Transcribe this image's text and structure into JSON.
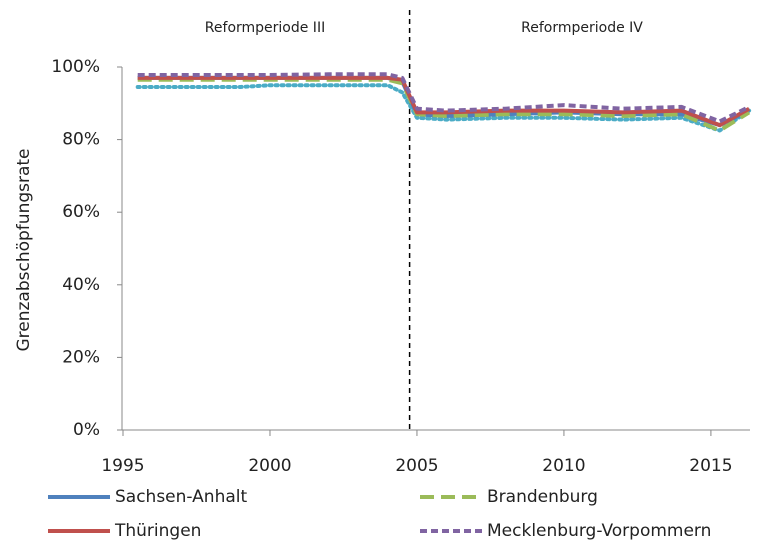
{
  "chart_data": {
    "type": "line",
    "y_label": "Grenzabschöpfungsrate",
    "annotations": [
      "Reformperiode III",
      "Reformperiode IV"
    ],
    "period_boundary": 2004.75,
    "x": [
      1995.5,
      1997,
      1999,
      2000,
      2002,
      2004,
      2004.5,
      2005,
      2006,
      2008,
      2010,
      2012,
      2014,
      2015.3,
      2016.3
    ],
    "series": [
      {
        "color": "#4bacc6",
        "dash": "dot",
        "values": [
          94.5,
          94.5,
          94.5,
          95,
          95,
          95,
          93,
          86,
          85.5,
          86,
          86,
          85.5,
          86,
          82.5,
          88
        ]
      },
      {
        "name": "Sachsen-Anhalt",
        "color": "#4f81bd",
        "dash": "solid",
        "values": [
          97,
          97,
          97,
          97,
          97,
          97,
          96,
          87,
          86.5,
          87,
          87.5,
          87,
          87,
          84,
          88
        ]
      },
      {
        "name": "Brandenburg",
        "color": "#9bbb59",
        "dash": "long",
        "values": [
          96.5,
          96.5,
          96.5,
          96.5,
          96.5,
          96.5,
          95.5,
          87,
          86.5,
          87,
          87,
          86.5,
          87,
          82.5,
          87.5
        ]
      },
      {
        "name": "Thüringen",
        "color": "#c0504d",
        "dash": "solid",
        "values": [
          97,
          97,
          97,
          97,
          97,
          97,
          96.5,
          87.5,
          87.5,
          88,
          88,
          87.5,
          88,
          84,
          88.5
        ]
      },
      {
        "name": "Mecklenburg-Vorpommern",
        "color": "#8064a2",
        "dash": "short",
        "values": [
          97.8,
          97.8,
          97.8,
          97.8,
          98,
          98,
          97,
          88.5,
          88,
          88.5,
          89.5,
          88.5,
          89,
          85,
          89
        ]
      }
    ],
    "xlim": [
      1995,
      2016.5
    ],
    "xticks": [
      1995,
      2000,
      2005,
      2010,
      2015
    ],
    "ylim": [
      0,
      100
    ],
    "yticks": [
      {
        "value": 0,
        "label": "0%"
      },
      {
        "value": 20,
        "label": "20%"
      },
      {
        "value": 40,
        "label": "40%"
      },
      {
        "value": 60,
        "label": "60%"
      },
      {
        "value": 80,
        "label": "80%"
      },
      {
        "value": 100,
        "label": "100%"
      }
    ]
  }
}
